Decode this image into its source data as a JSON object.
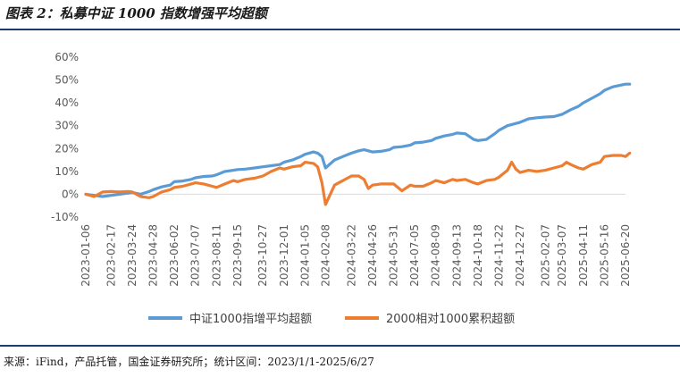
{
  "title": "图表 2：私募中证 1000 指数增强平均超额",
  "source": "来源：iFind，产品托管，国金证券研究所；统计区间：2023/1/1-2025/6/27",
  "chart_data": {
    "type": "line",
    "title": "",
    "xlabel": "",
    "ylabel": "",
    "ylim": [
      -0.1,
      0.6
    ],
    "yticks": [
      "-10%",
      "0%",
      "10%",
      "20%",
      "30%",
      "40%",
      "50%",
      "60%"
    ],
    "ytick_values": [
      -0.1,
      0.0,
      0.1,
      0.2,
      0.3,
      0.4,
      0.5,
      0.6
    ],
    "xticks": [
      "2023-01-06",
      "2023-02-17",
      "2023-03-24",
      "2023-04-28",
      "2023-06-02",
      "2023-07-07",
      "2023-08-11",
      "2023-09-15",
      "2023-10-27",
      "2023-12-01",
      "2024-01-05",
      "2024-02-08",
      "2024-03-22",
      "2024-04-26",
      "2024-05-31",
      "2024-07-05",
      "2024-08-09",
      "2024-09-13",
      "2024-10-18",
      "2024-11-22",
      "2024-12-27",
      "2025-02-07",
      "2025-03-07",
      "2025-04-11",
      "2025-05-16",
      "2025-06-20"
    ],
    "legend_position": "bottom",
    "grid": false,
    "series": [
      {
        "name": "中证1000指增平均超额",
        "color": "#5b9bd5",
        "points": [
          [
            "2023-01-06",
            0.0
          ],
          [
            "2023-01-20",
            -0.005
          ],
          [
            "2023-02-03",
            -0.01
          ],
          [
            "2023-02-17",
            -0.005
          ],
          [
            "2023-03-03",
            0.0
          ],
          [
            "2023-03-17",
            0.005
          ],
          [
            "2023-03-24",
            0.008
          ],
          [
            "2023-04-07",
            0.0
          ],
          [
            "2023-04-21",
            0.012
          ],
          [
            "2023-04-28",
            0.02
          ],
          [
            "2023-05-12",
            0.032
          ],
          [
            "2023-05-26",
            0.04
          ],
          [
            "2023-06-02",
            0.055
          ],
          [
            "2023-06-16",
            0.058
          ],
          [
            "2023-06-30",
            0.065
          ],
          [
            "2023-07-07",
            0.072
          ],
          [
            "2023-07-21",
            0.078
          ],
          [
            "2023-08-04",
            0.08
          ],
          [
            "2023-08-11",
            0.085
          ],
          [
            "2023-08-25",
            0.1
          ],
          [
            "2023-09-08",
            0.105
          ],
          [
            "2023-09-15",
            0.108
          ],
          [
            "2023-09-28",
            0.11
          ],
          [
            "2023-10-13",
            0.115
          ],
          [
            "2023-10-27",
            0.12
          ],
          [
            "2023-11-10",
            0.125
          ],
          [
            "2023-11-24",
            0.13
          ],
          [
            "2023-12-01",
            0.14
          ],
          [
            "2023-12-15",
            0.15
          ],
          [
            "2023-12-29",
            0.165
          ],
          [
            "2024-01-05",
            0.175
          ],
          [
            "2024-01-19",
            0.185
          ],
          [
            "2024-01-26",
            0.18
          ],
          [
            "2024-02-02",
            0.165
          ],
          [
            "2024-02-08",
            0.115
          ],
          [
            "2024-02-23",
            0.15
          ],
          [
            "2024-03-08",
            0.165
          ],
          [
            "2024-03-22",
            0.18
          ],
          [
            "2024-04-03",
            0.19
          ],
          [
            "2024-04-12",
            0.195
          ],
          [
            "2024-04-26",
            0.185
          ],
          [
            "2024-05-10",
            0.188
          ],
          [
            "2024-05-24",
            0.195
          ],
          [
            "2024-05-31",
            0.205
          ],
          [
            "2024-06-14",
            0.208
          ],
          [
            "2024-06-28",
            0.215
          ],
          [
            "2024-07-05",
            0.225
          ],
          [
            "2024-07-19",
            0.228
          ],
          [
            "2024-08-02",
            0.235
          ],
          [
            "2024-08-09",
            0.245
          ],
          [
            "2024-08-23",
            0.255
          ],
          [
            "2024-09-06",
            0.262
          ],
          [
            "2024-09-13",
            0.268
          ],
          [
            "2024-09-27",
            0.265
          ],
          [
            "2024-10-11",
            0.24
          ],
          [
            "2024-10-18",
            0.235
          ],
          [
            "2024-11-01",
            0.24
          ],
          [
            "2024-11-15",
            0.265
          ],
          [
            "2024-11-22",
            0.28
          ],
          [
            "2024-12-06",
            0.3
          ],
          [
            "2024-12-20",
            0.31
          ],
          [
            "2024-12-27",
            0.315
          ],
          [
            "2025-01-10",
            0.33
          ],
          [
            "2025-01-24",
            0.335
          ],
          [
            "2025-02-07",
            0.338
          ],
          [
            "2025-02-21",
            0.34
          ],
          [
            "2025-03-07",
            0.35
          ],
          [
            "2025-03-21",
            0.37
          ],
          [
            "2025-04-03",
            0.385
          ],
          [
            "2025-04-11",
            0.4
          ],
          [
            "2025-04-25",
            0.42
          ],
          [
            "2025-05-09",
            0.44
          ],
          [
            "2025-05-16",
            0.455
          ],
          [
            "2025-05-30",
            0.47
          ],
          [
            "2025-06-13",
            0.478
          ],
          [
            "2025-06-20",
            0.482
          ],
          [
            "2025-06-27",
            0.482
          ]
        ]
      },
      {
        "name": "2000相对1000累积超额",
        "color": "#ed7d31",
        "points": [
          [
            "2023-01-06",
            0.0
          ],
          [
            "2023-01-20",
            -0.01
          ],
          [
            "2023-02-03",
            0.01
          ],
          [
            "2023-02-17",
            0.012
          ],
          [
            "2023-03-03",
            0.01
          ],
          [
            "2023-03-17",
            0.012
          ],
          [
            "2023-03-24",
            0.01
          ],
          [
            "2023-04-07",
            -0.01
          ],
          [
            "2023-04-21",
            -0.015
          ],
          [
            "2023-04-28",
            -0.01
          ],
          [
            "2023-05-12",
            0.01
          ],
          [
            "2023-05-26",
            0.02
          ],
          [
            "2023-06-02",
            0.03
          ],
          [
            "2023-06-16",
            0.035
          ],
          [
            "2023-06-30",
            0.045
          ],
          [
            "2023-07-07",
            0.05
          ],
          [
            "2023-07-21",
            0.045
          ],
          [
            "2023-08-04",
            0.035
          ],
          [
            "2023-08-11",
            0.03
          ],
          [
            "2023-08-25",
            0.045
          ],
          [
            "2023-09-08",
            0.06
          ],
          [
            "2023-09-15",
            0.055
          ],
          [
            "2023-09-28",
            0.065
          ],
          [
            "2023-10-13",
            0.07
          ],
          [
            "2023-10-27",
            0.08
          ],
          [
            "2023-11-10",
            0.1
          ],
          [
            "2023-11-24",
            0.115
          ],
          [
            "2023-12-01",
            0.11
          ],
          [
            "2023-12-15",
            0.12
          ],
          [
            "2023-12-29",
            0.125
          ],
          [
            "2024-01-05",
            0.14
          ],
          [
            "2024-01-19",
            0.135
          ],
          [
            "2024-01-26",
            0.12
          ],
          [
            "2024-02-02",
            0.05
          ],
          [
            "2024-02-08",
            -0.045
          ],
          [
            "2024-02-23",
            0.04
          ],
          [
            "2024-03-08",
            0.06
          ],
          [
            "2024-03-22",
            0.08
          ],
          [
            "2024-04-03",
            0.08
          ],
          [
            "2024-04-12",
            0.065
          ],
          [
            "2024-04-19",
            0.025
          ],
          [
            "2024-04-26",
            0.04
          ],
          [
            "2024-05-10",
            0.045
          ],
          [
            "2024-05-24",
            0.045
          ],
          [
            "2024-05-31",
            0.045
          ],
          [
            "2024-06-14",
            0.015
          ],
          [
            "2024-06-28",
            0.04
          ],
          [
            "2024-07-05",
            0.035
          ],
          [
            "2024-07-19",
            0.035
          ],
          [
            "2024-08-02",
            0.05
          ],
          [
            "2024-08-09",
            0.06
          ],
          [
            "2024-08-23",
            0.05
          ],
          [
            "2024-09-06",
            0.065
          ],
          [
            "2024-09-13",
            0.06
          ],
          [
            "2024-09-27",
            0.065
          ],
          [
            "2024-10-11",
            0.05
          ],
          [
            "2024-10-18",
            0.045
          ],
          [
            "2024-11-01",
            0.06
          ],
          [
            "2024-11-15",
            0.065
          ],
          [
            "2024-11-22",
            0.075
          ],
          [
            "2024-12-06",
            0.105
          ],
          [
            "2024-12-13",
            0.14
          ],
          [
            "2024-12-20",
            0.11
          ],
          [
            "2024-12-27",
            0.095
          ],
          [
            "2025-01-10",
            0.105
          ],
          [
            "2025-01-24",
            0.1
          ],
          [
            "2025-02-07",
            0.105
          ],
          [
            "2025-02-21",
            0.115
          ],
          [
            "2025-03-07",
            0.125
          ],
          [
            "2025-03-14",
            0.14
          ],
          [
            "2025-03-21",
            0.13
          ],
          [
            "2025-04-03",
            0.115
          ],
          [
            "2025-04-11",
            0.11
          ],
          [
            "2025-04-25",
            0.13
          ],
          [
            "2025-05-09",
            0.14
          ],
          [
            "2025-05-16",
            0.165
          ],
          [
            "2025-05-30",
            0.17
          ],
          [
            "2025-06-13",
            0.17
          ],
          [
            "2025-06-20",
            0.165
          ],
          [
            "2025-06-27",
            0.18
          ]
        ]
      }
    ]
  }
}
